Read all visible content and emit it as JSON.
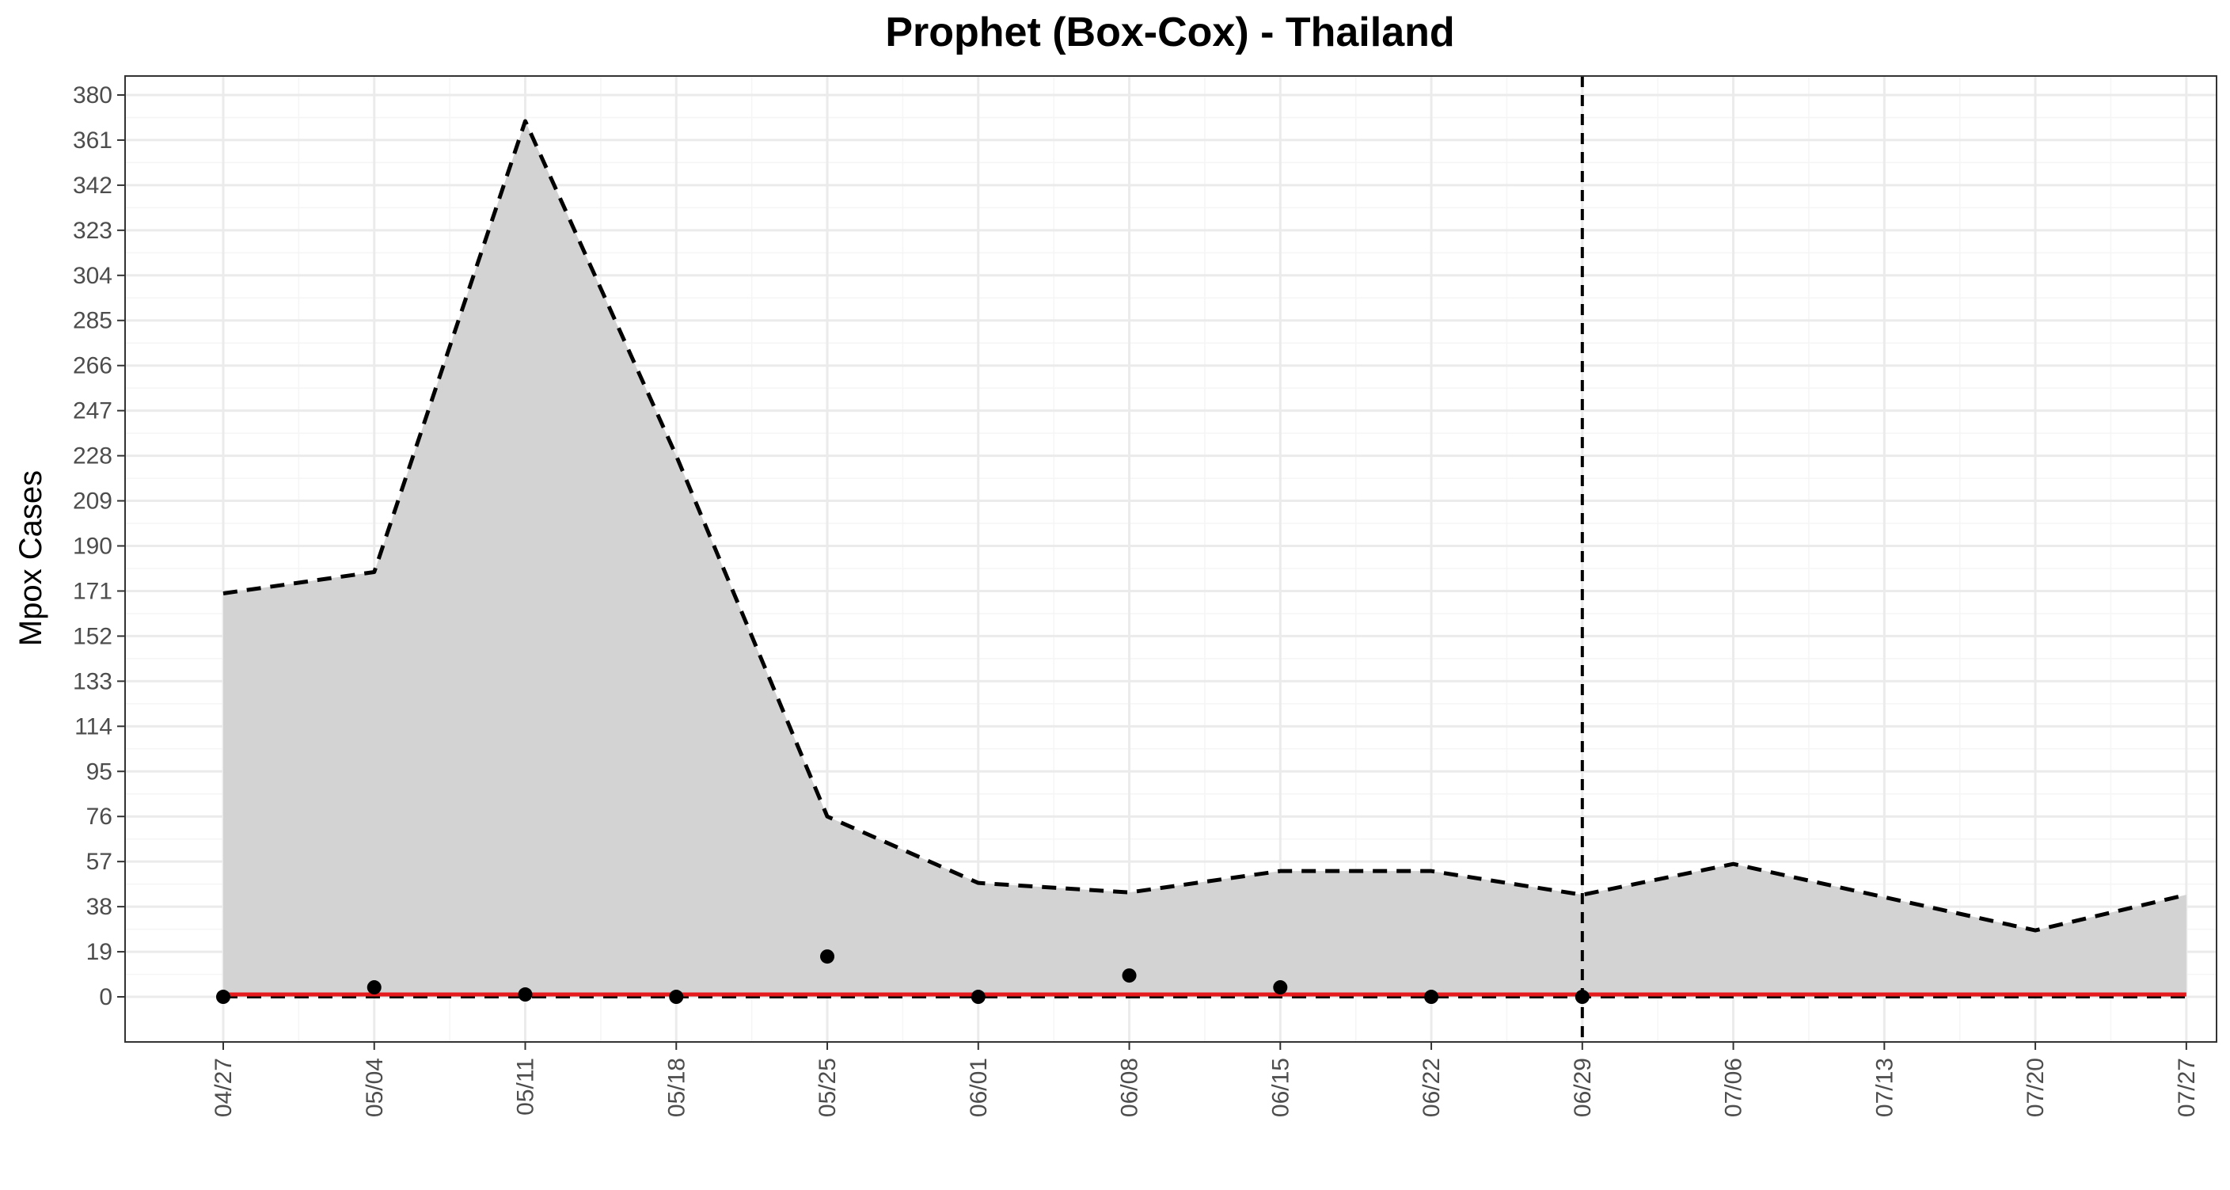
{
  "chart_data": {
    "type": "line",
    "title": "Prophet (Box-Cox) - Thailand",
    "xlabel": "",
    "ylabel": "Mpox Cases",
    "x_tick_labels": [
      "04/27",
      "05/04",
      "05/11",
      "05/18",
      "05/25",
      "06/01",
      "06/08",
      "06/15",
      "06/22",
      "06/29",
      "07/06",
      "07/13",
      "07/20",
      "07/27"
    ],
    "y_ticks": [
      0,
      19,
      38,
      57,
      76,
      95,
      114,
      133,
      152,
      171,
      190,
      209,
      228,
      247,
      266,
      285,
      304,
      323,
      342,
      361,
      380
    ],
    "ylim": [
      -19,
      388
    ],
    "xlim_index": [
      -0.65,
      13.2
    ],
    "grid": true,
    "legend": "none",
    "forecast_start": "06/29",
    "series": [
      {
        "role": "upper-bound",
        "style": "dashed",
        "x": [
          "04/27",
          "05/04",
          "05/11",
          "05/18",
          "05/25",
          "06/01",
          "06/08",
          "06/15",
          "06/22",
          "06/29",
          "07/06",
          "07/13",
          "07/20",
          "07/27"
        ],
        "values": [
          170,
          179,
          369,
          228,
          76,
          48,
          44,
          53,
          53,
          43,
          56,
          42,
          28,
          43
        ]
      },
      {
        "role": "lower-bound",
        "style": "dashed",
        "x": [
          "04/27",
          "05/04",
          "05/11",
          "05/18",
          "05/25",
          "06/01",
          "06/08",
          "06/15",
          "06/22",
          "06/29",
          "07/06",
          "07/13",
          "07/20",
          "07/27"
        ],
        "values": [
          0,
          0,
          0,
          0,
          0,
          0,
          0,
          0,
          0,
          0,
          0,
          0,
          0,
          0
        ]
      },
      {
        "role": "forecast",
        "style": "solid",
        "x": [
          "04/27",
          "05/04",
          "05/11",
          "05/18",
          "05/25",
          "06/01",
          "06/08",
          "06/15",
          "06/22",
          "06/29",
          "07/06",
          "07/13",
          "07/20",
          "07/27"
        ],
        "values": [
          1,
          1,
          1,
          1,
          1,
          1,
          1,
          1,
          1,
          1,
          1,
          1,
          1,
          1
        ]
      },
      {
        "role": "observed",
        "style": "points",
        "x": [
          "04/27",
          "05/04",
          "05/11",
          "05/18",
          "05/25",
          "06/01",
          "06/08",
          "06/15",
          "06/22",
          "06/29"
        ],
        "values": [
          0,
          4,
          1,
          0,
          17,
          0,
          9,
          4,
          0,
          0
        ]
      }
    ],
    "colors": {
      "band": "#d3d3d3",
      "forecast_line": "#e41a1c",
      "bounds": "#000000",
      "points": "#000000",
      "panel_border": "#333333",
      "grid_major": "#ebebeb",
      "grid_minor": "#f5f5f5"
    }
  }
}
